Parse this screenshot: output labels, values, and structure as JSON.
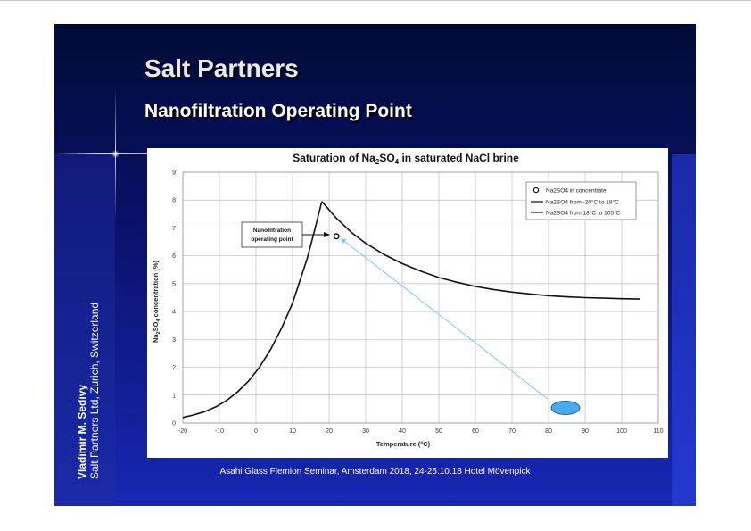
{
  "slide": {
    "title": "Salt Partners",
    "subtitle": "Nanofiltration Operating Point",
    "author_name": "Vladimir M. Sedivy",
    "author_org": "Salt Partners Ltd, Zurich, Switzerland",
    "footer": "Asahi Glass Flemion Seminar, Amsterdam 2018, 24-25.10.18 Hotel Mövenpick"
  },
  "colors": {
    "slide_background": "#060a56",
    "title_text": "#e8e8f2",
    "arrow": "#7ec8f0",
    "ellipse_fill": "#4aaaf0",
    "ellipse_stroke": "#1e5fb4",
    "curve": "#111111",
    "grid": "#bdbdbd"
  },
  "chart_data": {
    "type": "line",
    "title_prefix": "Saturation of Na",
    "title_sub1": "2",
    "title_mid": "SO",
    "title_sub2": "4",
    "title_suffix": " in saturated NaCl brine",
    "xlabel": "Temperature (°C)",
    "ylabel_prefix": "Na",
    "ylabel_sub1": "2",
    "ylabel_mid": "SO",
    "ylabel_sub2": "4",
    "ylabel_suffix": " concentration (%)",
    "xlim": [
      -20,
      110
    ],
    "ylim": [
      0,
      9
    ],
    "xticks": [
      -20,
      -10,
      0,
      10,
      20,
      30,
      40,
      50,
      60,
      70,
      80,
      90,
      100,
      110
    ],
    "yticks": [
      0,
      1,
      2,
      3,
      4,
      5,
      6,
      7,
      8,
      9
    ],
    "grid": true,
    "legend_position": "top-right",
    "series": [
      {
        "name": "Na2SO4 in concentrate",
        "marker": "open-circle",
        "x": [
          22
        ],
        "y": [
          6.7
        ]
      },
      {
        "name": "Na2SO4 from -20°C to 18°C",
        "x": [
          -20,
          -17,
          -14,
          -11,
          -8,
          -5,
          -2,
          1,
          4,
          7,
          10,
          12,
          14,
          16,
          18
        ],
        "y": [
          0.2,
          0.29,
          0.41,
          0.58,
          0.81,
          1.12,
          1.51,
          2.01,
          2.64,
          3.4,
          4.3,
          5.1,
          5.9,
          6.9,
          7.95
        ]
      },
      {
        "name": "Na2SO4 from 18°C to 105°C",
        "x": [
          18,
          22,
          26,
          30,
          35,
          40,
          45,
          50,
          55,
          60,
          65,
          70,
          75,
          80,
          85,
          90,
          95,
          100,
          105
        ],
        "y": [
          7.95,
          7.35,
          6.85,
          6.45,
          6.05,
          5.72,
          5.45,
          5.22,
          5.05,
          4.9,
          4.79,
          4.7,
          4.63,
          4.57,
          4.53,
          4.5,
          4.48,
          4.46,
          4.45
        ]
      }
    ],
    "annotations": [
      {
        "text_line1": "Nanofiltration",
        "text_line2": "operating point",
        "x": 22,
        "y": 6.7
      }
    ]
  }
}
